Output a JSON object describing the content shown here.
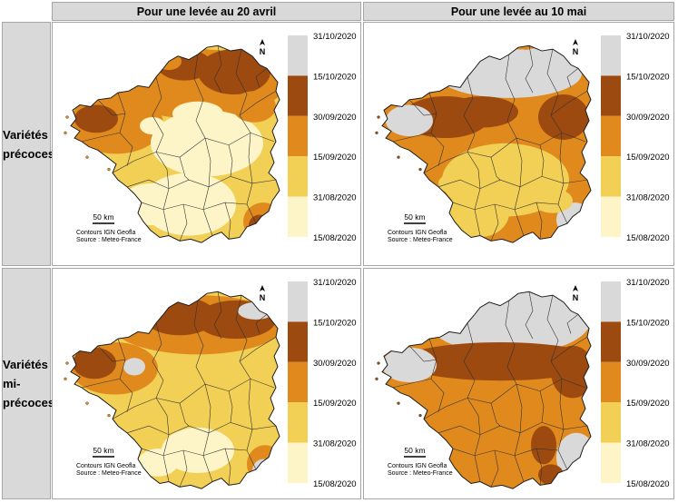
{
  "columns": [
    {
      "title": "Pour une levée au 20 avril"
    },
    {
      "title": "Pour une levée au 10 mai"
    }
  ],
  "rows": [
    {
      "label": "Variétés précoces",
      "label_line1": "Variétés",
      "label_line2": "précoces",
      "label_line3": ""
    },
    {
      "label": "Variétés mi-précoces",
      "label_line1": "Variétés",
      "label_line2": "mi-",
      "label_line3": "précoces"
    }
  ],
  "legend": {
    "ticks": [
      "31/10/2020",
      "15/10/2020",
      "30/09/2020",
      "15/09/2020",
      "31/08/2020",
      "15/08/2020"
    ],
    "classes": [
      {
        "color": "#d9d9d9"
      },
      {
        "color": "#9c4a0f"
      },
      {
        "color": "#e08a1e"
      },
      {
        "color": "#f2cf55"
      },
      {
        "color": "#fdf5c8"
      }
    ]
  },
  "map": {
    "scale_label": "50 km",
    "credit_line1": "Contours IGN Geofla",
    "credit_line2": "Source : Meteo-France",
    "north_symbol": "N"
  }
}
